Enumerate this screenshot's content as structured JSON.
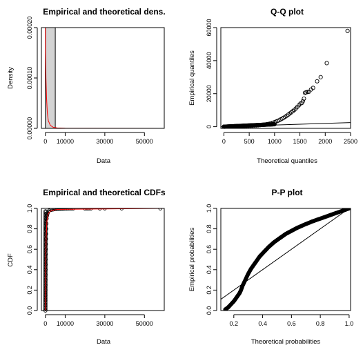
{
  "chart_data": [
    {
      "id": "density",
      "type": "bar",
      "title": "Empirical and theoretical dens.",
      "xlabel": "Data",
      "ylabel": "Density",
      "xlim": [
        -2000,
        60000
      ],
      "ylim": [
        0,
        0.0002
      ],
      "xticks": [
        0,
        10000,
        30000,
        50000
      ],
      "yticks": [
        0.0,
        0.0001,
        0.0002
      ],
      "xtick_labels": [
        "0",
        "10000",
        "30000",
        "50000"
      ],
      "ytick_labels": [
        "0.00000",
        "0.00010",
        "0.00020"
      ],
      "histogram": [
        {
          "x0": 0,
          "x1": 5000,
          "density": 0.0002
        }
      ],
      "theoretical_curve": {
        "x": [
          0,
          100,
          300,
          600,
          1000,
          1500,
          2500,
          4000,
          6000,
          10000,
          20000,
          60000
        ],
        "y": [
          0.0002,
          0.00015,
          0.0001,
          6e-05,
          3e-05,
          1.5e-05,
          6e-06,
          2e-06,
          8e-07,
          3e-07,
          1e-07,
          0.0
        ]
      },
      "colors": {
        "histogram": "#d3d3d3",
        "curve": "#ff0000"
      }
    },
    {
      "id": "qq",
      "type": "scatter",
      "title": "Q-Q plot",
      "xlabel": "Theoretical quantiles",
      "ylabel": "Empirical quantiles",
      "xlim": [
        -60,
        2500
      ],
      "ylim": [
        -1000,
        60000
      ],
      "xticks": [
        0,
        500,
        1000,
        1500,
        2000,
        2500
      ],
      "yticks": [
        0,
        20000,
        40000,
        60000
      ],
      "xtick_labels": [
        "0",
        "500",
        "1000",
        "1500",
        "2000",
        "2500"
      ],
      "ytick_labels": [
        "0",
        "20000",
        "40000",
        "60000"
      ],
      "points": [
        [
          0,
          0
        ],
        [
          40,
          40
        ],
        [
          80,
          80
        ],
        [
          120,
          120
        ],
        [
          160,
          160
        ],
        [
          200,
          200
        ],
        [
          240,
          240
        ],
        [
          280,
          280
        ],
        [
          320,
          320
        ],
        [
          360,
          360
        ],
        [
          400,
          400
        ],
        [
          440,
          440
        ],
        [
          480,
          480
        ],
        [
          520,
          540
        ],
        [
          560,
          600
        ],
        [
          600,
          680
        ],
        [
          640,
          760
        ],
        [
          680,
          860
        ],
        [
          720,
          980
        ],
        [
          760,
          1120
        ],
        [
          800,
          1280
        ],
        [
          840,
          1480
        ],
        [
          880,
          1720
        ],
        [
          920,
          2000
        ],
        [
          960,
          2350
        ],
        [
          1000,
          2750
        ],
        [
          1030,
          3100
        ],
        [
          1060,
          3500
        ],
        [
          1090,
          3900
        ],
        [
          1120,
          4400
        ],
        [
          1150,
          4900
        ],
        [
          1180,
          5400
        ],
        [
          1210,
          6000
        ],
        [
          1240,
          6600
        ],
        [
          1270,
          7300
        ],
        [
          1300,
          8000
        ],
        [
          1330,
          8700
        ],
        [
          1360,
          9400
        ],
        [
          1390,
          10200
        ],
        [
          1420,
          11000
        ],
        [
          1450,
          12000
        ],
        [
          1480,
          13000
        ],
        [
          1510,
          14000
        ],
        [
          1540,
          14400
        ],
        [
          1560,
          15500
        ],
        [
          1580,
          17000
        ],
        [
          1600,
          20500
        ],
        [
          1620,
          20800
        ],
        [
          1650,
          21000
        ],
        [
          1680,
          21200
        ],
        [
          1720,
          22500
        ],
        [
          1760,
          23500
        ],
        [
          1840,
          27500
        ],
        [
          1910,
          30000
        ],
        [
          2030,
          38500
        ],
        [
          2440,
          58000
        ]
      ],
      "reference_line": {
        "x": [
          -60,
          2500
        ],
        "y": [
          -60,
          2500
        ]
      },
      "colors": {
        "points": "#000000",
        "line": "#000000"
      }
    },
    {
      "id": "cdf",
      "type": "scatter",
      "title": "Empirical and theoretical CDFs",
      "xlabel": "Data",
      "ylabel": "CDF",
      "xlim": [
        -2000,
        60000
      ],
      "ylim": [
        0,
        1
      ],
      "xticks": [
        0,
        10000,
        30000,
        50000
      ],
      "yticks": [
        0.0,
        0.2,
        0.4,
        0.6,
        0.8,
        1.0
      ],
      "xtick_labels": [
        "0",
        "10000",
        "30000",
        "50000"
      ],
      "ytick_labels": [
        "0.0",
        "0.2",
        "0.4",
        "0.6",
        "0.8",
        "1.0"
      ],
      "points": [
        [
          0,
          0.0
        ],
        [
          0,
          0.05
        ],
        [
          20,
          0.1
        ],
        [
          40,
          0.15
        ],
        [
          60,
          0.2
        ],
        [
          80,
          0.25
        ],
        [
          100,
          0.3
        ],
        [
          120,
          0.35
        ],
        [
          140,
          0.4
        ],
        [
          160,
          0.45
        ],
        [
          180,
          0.5
        ],
        [
          200,
          0.55
        ],
        [
          230,
          0.6
        ],
        [
          260,
          0.65
        ],
        [
          300,
          0.7
        ],
        [
          350,
          0.75
        ],
        [
          420,
          0.8
        ],
        [
          520,
          0.85
        ],
        [
          650,
          0.9
        ],
        [
          850,
          0.93
        ],
        [
          1100,
          0.95
        ],
        [
          1500,
          0.97
        ],
        [
          2000,
          0.98
        ],
        [
          3000,
          0.985
        ],
        [
          4000,
          0.99
        ],
        [
          5000,
          0.992
        ],
        [
          6000,
          0.993
        ],
        [
          7000,
          0.994
        ],
        [
          8000,
          0.995
        ],
        [
          9000,
          0.996
        ],
        [
          10000,
          0.997
        ],
        [
          11000,
          0.997
        ],
        [
          12000,
          0.998
        ],
        [
          13000,
          0.998
        ],
        [
          14000,
          0.998
        ],
        [
          20000,
          0.998
        ],
        [
          21000,
          0.999
        ],
        [
          22000,
          0.999
        ],
        [
          23000,
          0.999
        ],
        [
          27500,
          0.999
        ],
        [
          30000,
          1.0
        ],
        [
          38500,
          1.0
        ],
        [
          58000,
          1.0
        ]
      ],
      "theoretical_curve": {
        "x": [
          0,
          100,
          200,
          400,
          800,
          1500,
          3000,
          6000,
          60000
        ],
        "y": [
          0.0,
          0.3,
          0.5,
          0.72,
          0.88,
          0.95,
          0.98,
          0.99,
          1.0
        ]
      },
      "colors": {
        "points": "#000000",
        "curve": "#ff0000"
      }
    },
    {
      "id": "pp",
      "type": "scatter",
      "title": "P-P plot",
      "xlabel": "Theoretical probabilities",
      "ylabel": "Empirical probabilities",
      "xlim": [
        0.11,
        1.01
      ],
      "ylim": [
        0,
        1
      ],
      "xticks": [
        0.2,
        0.4,
        0.6,
        0.8,
        1.0
      ],
      "yticks": [
        0.0,
        0.2,
        0.4,
        0.6,
        0.8,
        1.0
      ],
      "xtick_labels": [
        "0.2",
        "0.4",
        "0.6",
        "0.8",
        "1.0"
      ],
      "ytick_labels": [
        "0.0",
        "0.2",
        "0.4",
        "0.6",
        "0.8",
        "1.0"
      ],
      "curve_points": {
        "x": [
          0.14,
          0.16,
          0.18,
          0.2,
          0.22,
          0.24,
          0.25,
          0.26,
          0.28,
          0.3,
          0.32,
          0.34,
          0.36,
          0.38,
          0.4,
          0.42,
          0.44,
          0.46,
          0.48,
          0.5,
          0.52,
          0.54,
          0.56,
          0.58,
          0.6,
          0.62,
          0.64,
          0.66,
          0.68,
          0.7,
          0.72,
          0.74,
          0.76,
          0.78,
          0.8,
          0.82,
          0.84,
          0.86,
          0.88,
          0.9,
          0.92,
          0.94,
          0.96,
          0.98,
          1.0
        ],
        "y": [
          0.01,
          0.03,
          0.06,
          0.09,
          0.13,
          0.17,
          0.2,
          0.24,
          0.3,
          0.36,
          0.41,
          0.45,
          0.49,
          0.53,
          0.56,
          0.59,
          0.62,
          0.645,
          0.67,
          0.69,
          0.71,
          0.73,
          0.75,
          0.765,
          0.78,
          0.795,
          0.81,
          0.822,
          0.835,
          0.847,
          0.858,
          0.87,
          0.88,
          0.89,
          0.9,
          0.91,
          0.92,
          0.93,
          0.94,
          0.95,
          0.96,
          0.97,
          0.98,
          0.99,
          1.0
        ]
      },
      "reference_line": {
        "x": [
          0.11,
          1.0
        ],
        "y": [
          0.11,
          1.0
        ]
      },
      "colors": {
        "points": "#000000",
        "line": "#000000"
      }
    }
  ]
}
